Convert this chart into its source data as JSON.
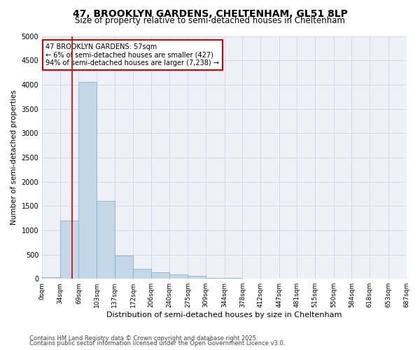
{
  "title_line1": "47, BROOKLYN GARDENS, CHELTENHAM, GL51 8LP",
  "title_line2": "Size of property relative to semi-detached houses in Cheltenham",
  "xlabel": "Distribution of semi-detached houses by size in Cheltenham",
  "ylabel": "Number of semi-detached properties",
  "annotation_title": "47 BROOKLYN GARDENS: 57sqm",
  "annotation_line2": "← 6% of semi-detached houses are smaller (427)",
  "annotation_line3": "94% of semi-detached houses are larger (7,238) →",
  "property_size": 57,
  "bar_edges": [
    0,
    34,
    69,
    103,
    137,
    172,
    206,
    240,
    275,
    309,
    344,
    378,
    412,
    447,
    481,
    515,
    550,
    584,
    618,
    653,
    687
  ],
  "bar_heights": [
    30,
    1200,
    4050,
    1600,
    480,
    210,
    130,
    85,
    65,
    20,
    12,
    8,
    5,
    4,
    3,
    3,
    2,
    2,
    2,
    2
  ],
  "bar_color": "#c5d8e8",
  "bar_edge_color": "#7aaac8",
  "vline_color": "#cc0000",
  "annotation_box_color": "#cc0000",
  "grid_color": "#d0d8e8",
  "ylim": [
    0,
    5000
  ],
  "yticks": [
    0,
    500,
    1000,
    1500,
    2000,
    2500,
    3000,
    3500,
    4000,
    4500,
    5000
  ],
  "bg_color": "#eef2f8",
  "footer_line1": "Contains HM Land Registry data © Crown copyright and database right 2025.",
  "footer_line2": "Contains public sector information licensed under the Open Government Licence v3.0."
}
